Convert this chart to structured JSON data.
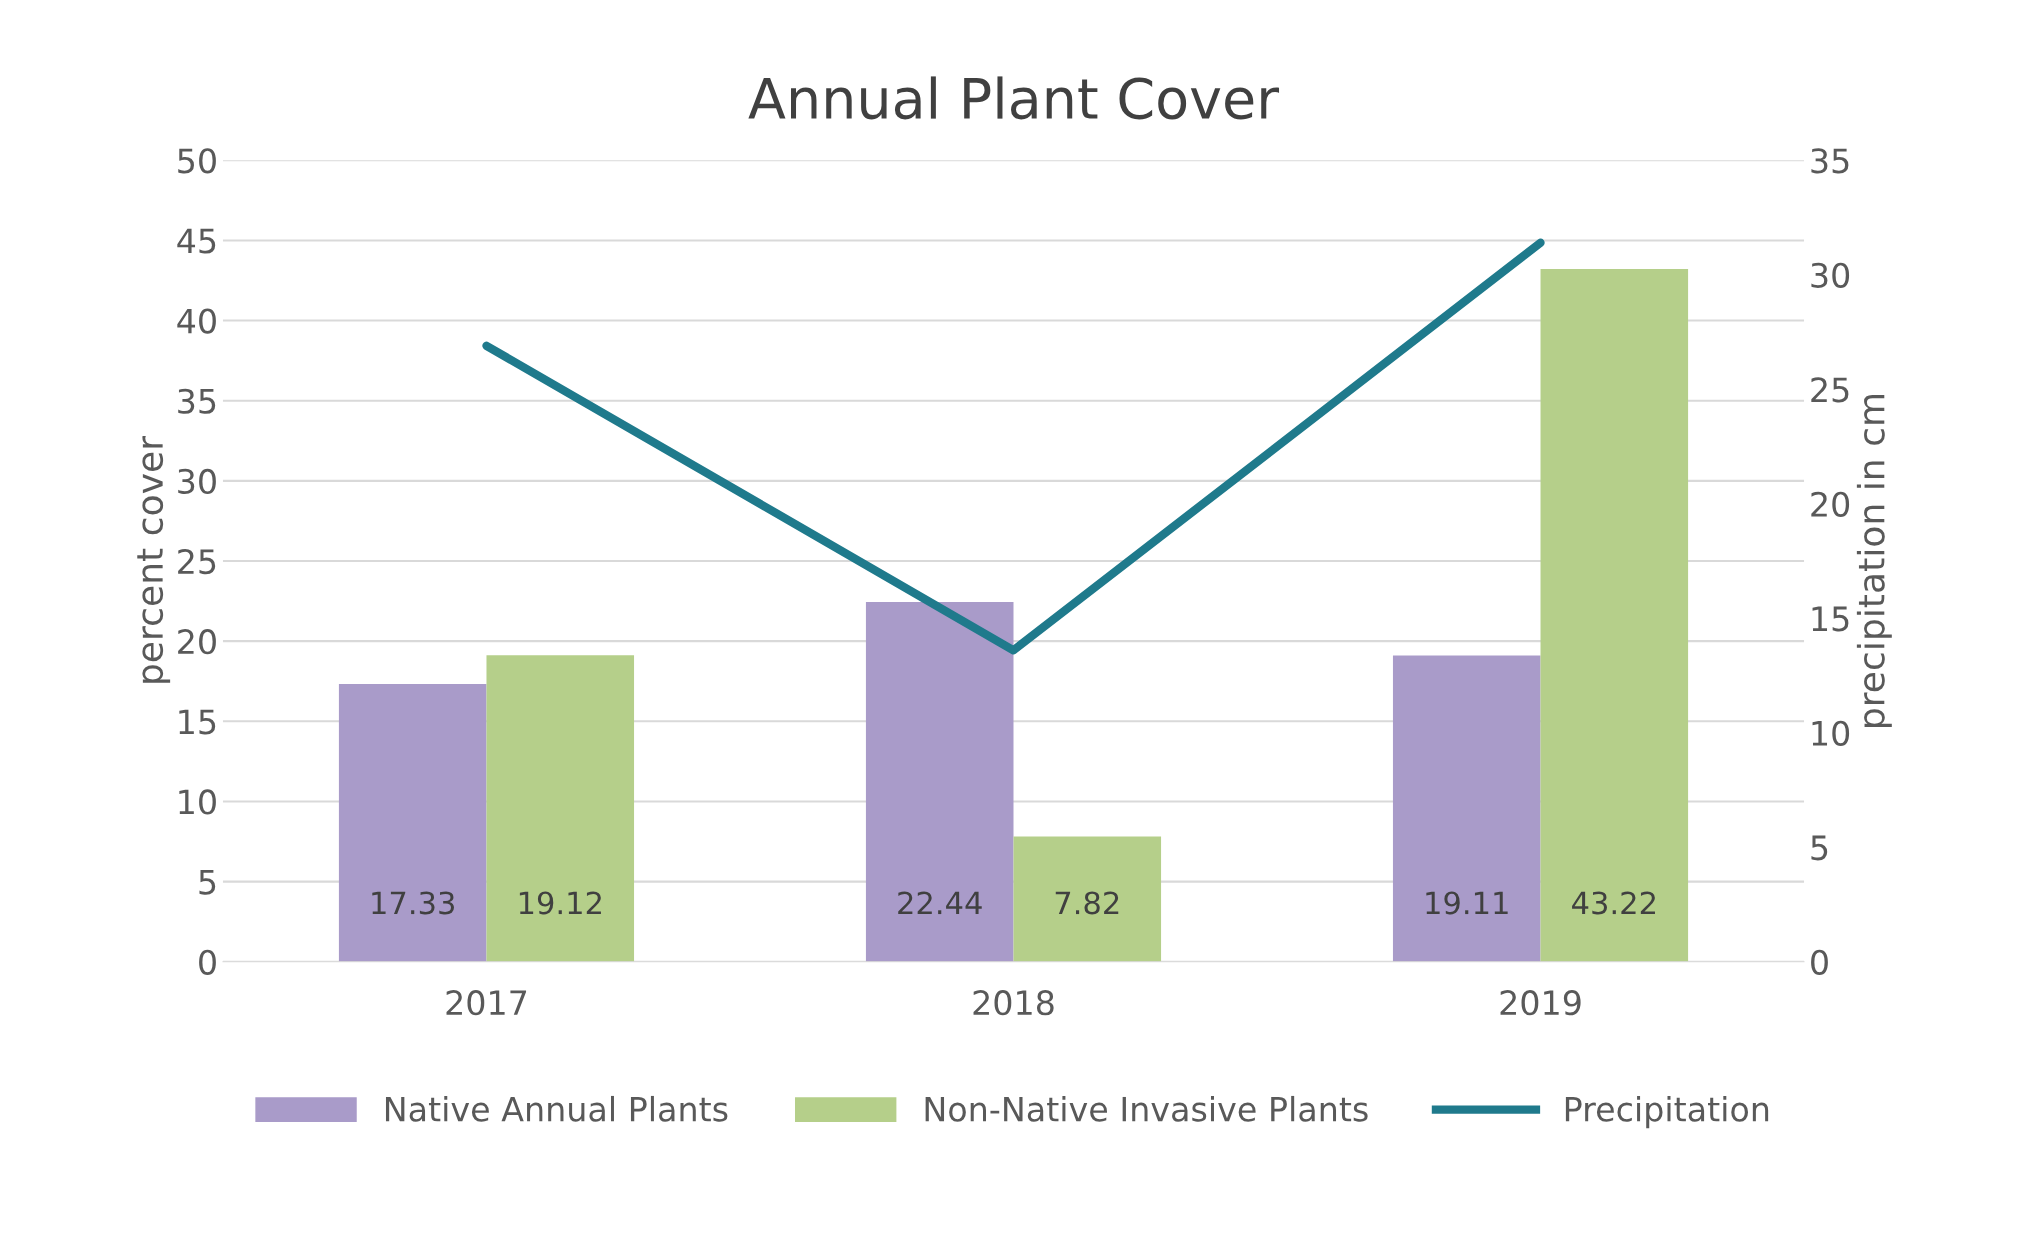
{
  "chart_data": {
    "type": "bar",
    "title": "Annual Plant Cover",
    "ylabel": "percent cover",
    "y2label": "precipitation in cm",
    "categories": [
      "2017",
      "2018",
      "2019"
    ],
    "series": [
      {
        "name": "Native Annual Plants",
        "color": "#a99bc9",
        "values": [
          17.33,
          22.44,
          19.11
        ],
        "value_labels": [
          "17.33",
          "22.44",
          "19.11"
        ]
      },
      {
        "name": "Non-Native Invasive Plants",
        "color": "#b5cf8a",
        "values": [
          19.12,
          7.82,
          43.22
        ],
        "value_labels": [
          "19.12",
          "7.82",
          "43.22"
        ]
      },
      {
        "name": "Precipitation",
        "type": "line",
        "axis": "y2",
        "color": "#1f7a8c",
        "values": [
          26.9,
          13.6,
          31.4
        ]
      }
    ],
    "ylim": [
      0,
      50
    ],
    "yticks": [
      0,
      5,
      10,
      15,
      20,
      25,
      30,
      35,
      40,
      45,
      50
    ],
    "y2lim": [
      0,
      35
    ],
    "y2ticks": [
      0,
      5,
      10,
      15,
      20,
      25,
      30,
      35
    ],
    "grid": "y",
    "legend": "bottom",
    "marker": "none",
    "line_style": "solid"
  }
}
